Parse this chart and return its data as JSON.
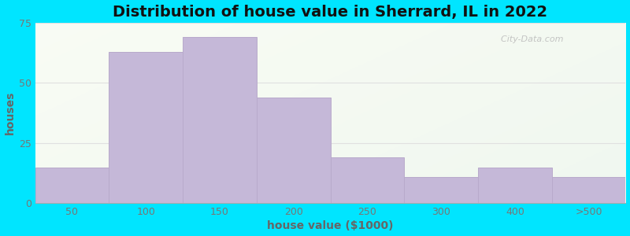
{
  "title": "Distribution of house value in Sherrard, IL in 2022",
  "xlabel": "house value ($1000)",
  "ylabel": "houses",
  "bar_labels": [
    "50",
    "100",
    "150",
    "200",
    "250",
    "300",
    "400",
    ">500"
  ],
  "bar_heights": [
    15,
    63,
    69,
    44,
    19,
    11,
    15,
    11
  ],
  "bar_color": "#c5b8d8",
  "bar_edge_color": "#b8aacb",
  "background_outer": "#00e5ff",
  "ylim": [
    0,
    75
  ],
  "yticks": [
    0,
    25,
    50,
    75
  ],
  "title_fontsize": 14,
  "axis_label_fontsize": 10,
  "tick_fontsize": 9,
  "watermark_text": "  City-Data.com",
  "grid_color": "#e0e0e0",
  "tick_color": "#777777",
  "label_color": "#666666"
}
